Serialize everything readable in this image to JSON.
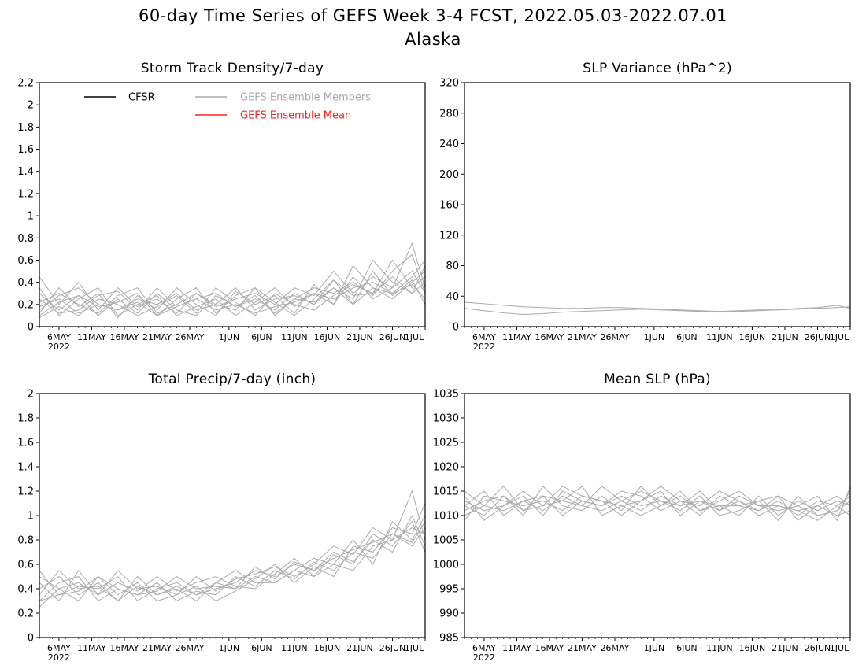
{
  "figure": {
    "title_line1": "60-day Time Series of GEFS Week 3-4 FCST, 2022.05.03-2022.07.01",
    "title_line2": "Alaska"
  },
  "legend": {
    "items": [
      {
        "label": "CFSR",
        "color": "#000000"
      },
      {
        "label": "GEFS Ensemble Members",
        "color": "#aaaaaa"
      },
      {
        "label": "GEFS Ensemble Mean",
        "color": "#ff2020"
      }
    ]
  },
  "colors": {
    "members": "#aaaaaa",
    "axis": "#000000"
  },
  "chart_data": [
    {
      "type": "line",
      "title": "Storm Track Density/7-day",
      "ylim": [
        0,
        2.2
      ],
      "yticks": [
        "0",
        "0.2",
        "0.4",
        "0.6",
        "0.8",
        "1",
        "1.2",
        "1.4",
        "1.6",
        "1.8",
        "2",
        "2.2"
      ],
      "xticks": [
        "6MAY",
        "11MAY",
        "16MAY",
        "21MAY",
        "26MAY",
        "1JUN",
        "6JUN",
        "11JUN",
        "16JUN",
        "21JUN",
        "26JUN",
        "1JUL"
      ],
      "xtick_year": "2022",
      "xlim_days": [
        0,
        59
      ],
      "x": [
        0,
        3,
        6,
        9,
        12,
        15,
        18,
        21,
        24,
        27,
        30,
        33,
        36,
        39,
        42,
        45,
        48,
        51,
        54,
        57,
        59
      ],
      "series": [
        {
          "values": [
            0.18,
            0.25,
            0.12,
            0.2,
            0.15,
            0.22,
            0.1,
            0.18,
            0.25,
            0.15,
            0.2,
            0.12,
            0.18,
            0.22,
            0.3,
            0.25,
            0.35,
            0.4,
            0.3,
            0.38,
            0.25
          ]
        },
        {
          "values": [
            0.3,
            0.15,
            0.28,
            0.1,
            0.25,
            0.12,
            0.3,
            0.15,
            0.1,
            0.28,
            0.18,
            0.25,
            0.15,
            0.3,
            0.2,
            0.42,
            0.28,
            0.3,
            0.45,
            0.3,
            0.4
          ]
        },
        {
          "values": [
            0.12,
            0.35,
            0.18,
            0.3,
            0.08,
            0.28,
            0.15,
            0.35,
            0.2,
            0.1,
            0.32,
            0.2,
            0.28,
            0.12,
            0.38,
            0.2,
            0.45,
            0.25,
            0.35,
            0.5,
            0.3
          ]
        },
        {
          "values": [
            0.45,
            0.2,
            0.4,
            0.15,
            0.35,
            0.18,
            0.25,
            0.12,
            0.3,
            0.2,
            0.15,
            0.35,
            0.1,
            0.25,
            0.22,
            0.35,
            0.2,
            0.5,
            0.28,
            0.42,
            0.2
          ]
        },
        {
          "values": [
            0.08,
            0.18,
            0.1,
            0.25,
            0.2,
            0.1,
            0.18,
            0.28,
            0.12,
            0.35,
            0.22,
            0.1,
            0.3,
            0.2,
            0.15,
            0.28,
            0.38,
            0.3,
            0.6,
            0.35,
            0.45
          ]
        },
        {
          "values": [
            0.22,
            0.3,
            0.2,
            0.12,
            0.28,
            0.35,
            0.12,
            0.2,
            0.3,
            0.18,
            0.25,
            0.3,
            0.2,
            0.35,
            0.28,
            0.5,
            0.3,
            0.45,
            0.35,
            0.75,
            0.35
          ]
        },
        {
          "values": [
            0.35,
            0.1,
            0.25,
            0.35,
            0.1,
            0.2,
            0.28,
            0.1,
            0.18,
            0.25,
            0.1,
            0.22,
            0.35,
            0.18,
            0.3,
            0.2,
            0.55,
            0.35,
            0.25,
            0.4,
            0.5
          ]
        },
        {
          "values": [
            0.15,
            0.28,
            0.35,
            0.2,
            0.15,
            0.25,
            0.2,
            0.3,
            0.15,
            0.2,
            0.35,
            0.15,
            0.25,
            0.28,
            0.2,
            0.35,
            0.25,
            0.6,
            0.4,
            0.3,
            0.55
          ]
        },
        {
          "values": [
            0.25,
            0.12,
            0.15,
            0.28,
            0.32,
            0.15,
            0.35,
            0.18,
            0.25,
            0.3,
            0.18,
            0.28,
            0.12,
            0.25,
            0.35,
            0.3,
            0.4,
            0.28,
            0.5,
            0.65,
            0.3
          ]
        },
        {
          "values": [
            0.1,
            0.22,
            0.28,
            0.18,
            0.22,
            0.3,
            0.1,
            0.25,
            0.35,
            0.12,
            0.28,
            0.35,
            0.22,
            0.1,
            0.25,
            0.42,
            0.2,
            0.35,
            0.3,
            0.45,
            0.6
          ]
        }
      ]
    },
    {
      "type": "line",
      "title": "SLP Variance (hPa^2)",
      "ylim": [
        0,
        320
      ],
      "yticks": [
        "0",
        "40",
        "80",
        "120",
        "160",
        "200",
        "240",
        "280",
        "320"
      ],
      "xticks": [
        "6MAY",
        "11MAY",
        "16MAY",
        "21MAY",
        "26MAY",
        "1JUN",
        "6JUN",
        "11JUN",
        "16JUN",
        "21JUN",
        "26JUN",
        "1JUL"
      ],
      "xtick_year": "2022",
      "xlim_days": [
        0,
        59
      ],
      "x": [
        0,
        3,
        6,
        9,
        12,
        15,
        18,
        21,
        24,
        27,
        30,
        33,
        36,
        39,
        42,
        45,
        48,
        51,
        54,
        57,
        59
      ],
      "series": [
        {
          "values": [
            32,
            30,
            28,
            26,
            25,
            24,
            24,
            25,
            25,
            24,
            23,
            22,
            21,
            20,
            21,
            22,
            22,
            24,
            25,
            28,
            24
          ]
        },
        {
          "values": [
            24,
            21,
            18,
            16,
            17,
            19,
            20,
            21,
            22,
            23,
            22,
            21,
            20,
            19,
            20,
            21,
            22,
            23,
            24,
            25,
            26
          ]
        }
      ]
    },
    {
      "type": "line",
      "title": "Total Precip/7-day (inch)",
      "ylim": [
        0,
        2
      ],
      "yticks": [
        "0",
        "0.2",
        "0.4",
        "0.6",
        "0.8",
        "1",
        "1.2",
        "1.4",
        "1.6",
        "1.8",
        "2"
      ],
      "xticks": [
        "6MAY",
        "11MAY",
        "16MAY",
        "21MAY",
        "26MAY",
        "1JUN",
        "6JUN",
        "11JUN",
        "16JUN",
        "21JUN",
        "26JUN",
        "1JUL"
      ],
      "xtick_year": "2022",
      "xlim_days": [
        0,
        59
      ],
      "x": [
        0,
        3,
        6,
        9,
        12,
        15,
        18,
        21,
        24,
        27,
        30,
        33,
        36,
        39,
        42,
        45,
        48,
        51,
        54,
        57,
        59
      ],
      "series": [
        {
          "values": [
            0.4,
            0.5,
            0.35,
            0.45,
            0.3,
            0.42,
            0.35,
            0.4,
            0.3,
            0.45,
            0.4,
            0.5,
            0.45,
            0.55,
            0.5,
            0.6,
            0.55,
            0.75,
            0.8,
            0.9,
            0.85
          ]
        },
        {
          "values": [
            0.3,
            0.45,
            0.5,
            0.3,
            0.4,
            0.35,
            0.45,
            0.3,
            0.38,
            0.35,
            0.5,
            0.42,
            0.55,
            0.48,
            0.62,
            0.55,
            0.7,
            0.65,
            0.85,
            0.78,
            0.95
          ]
        },
        {
          "values": [
            0.55,
            0.35,
            0.42,
            0.4,
            0.5,
            0.3,
            0.4,
            0.45,
            0.35,
            0.4,
            0.45,
            0.55,
            0.5,
            0.6,
            0.55,
            0.7,
            0.62,
            0.8,
            0.7,
            1.0,
            0.75
          ]
        },
        {
          "values": [
            0.25,
            0.4,
            0.3,
            0.5,
            0.35,
            0.45,
            0.3,
            0.35,
            0.42,
            0.3,
            0.38,
            0.48,
            0.6,
            0.45,
            0.58,
            0.5,
            0.75,
            0.7,
            0.9,
            0.85,
            1.1
          ]
        },
        {
          "values": [
            0.45,
            0.3,
            0.55,
            0.35,
            0.45,
            0.38,
            0.5,
            0.38,
            0.45,
            0.5,
            0.42,
            0.4,
            0.52,
            0.65,
            0.5,
            0.68,
            0.6,
            0.85,
            0.75,
            0.95,
            0.7
          ]
        },
        {
          "values": [
            0.35,
            0.55,
            0.4,
            0.42,
            0.3,
            0.5,
            0.35,
            0.42,
            0.35,
            0.45,
            0.55,
            0.45,
            0.45,
            0.55,
            0.65,
            0.6,
            0.8,
            0.6,
            0.95,
            0.8,
            1.0
          ]
        },
        {
          "values": [
            0.5,
            0.4,
            0.45,
            0.35,
            0.55,
            0.4,
            0.42,
            0.35,
            0.5,
            0.38,
            0.48,
            0.52,
            0.58,
            0.5,
            0.6,
            0.75,
            0.68,
            0.9,
            0.8,
            1.2,
            0.8
          ]
        },
        {
          "values": [
            0.3,
            0.35,
            0.38,
            0.5,
            0.4,
            0.35,
            0.38,
            0.5,
            0.4,
            0.42,
            0.4,
            0.58,
            0.48,
            0.62,
            0.55,
            0.65,
            0.72,
            0.78,
            0.85,
            0.75,
            0.9
          ]
        }
      ]
    },
    {
      "type": "line",
      "title": "Mean SLP (hPa)",
      "ylim": [
        985,
        1035
      ],
      "yticks": [
        "985",
        "990",
        "995",
        "1000",
        "1005",
        "1010",
        "1015",
        "1020",
        "1025",
        "1030",
        "1035"
      ],
      "xticks": [
        "6MAY",
        "11MAY",
        "16MAY",
        "21MAY",
        "26MAY",
        "1JUN",
        "6JUN",
        "11JUN",
        "16JUN",
        "21JUN",
        "26JUN",
        "1JUL"
      ],
      "xtick_year": "2022",
      "xlim_days": [
        0,
        59
      ],
      "x": [
        0,
        3,
        6,
        9,
        12,
        15,
        18,
        21,
        24,
        27,
        30,
        33,
        36,
        39,
        42,
        45,
        48,
        51,
        54,
        57,
        59
      ],
      "series": [
        {
          "values": [
            1012,
            1015,
            1010,
            1013,
            1011,
            1014,
            1012,
            1016,
            1013,
            1011,
            1014,
            1012,
            1015,
            1011,
            1013,
            1010,
            1012,
            1011,
            1009,
            1012,
            1014
          ]
        },
        {
          "values": [
            1010,
            1012,
            1016,
            1011,
            1014,
            1010,
            1013,
            1012,
            1015,
            1014,
            1011,
            1013,
            1010,
            1014,
            1012,
            1011,
            1014,
            1009,
            1012,
            1010,
            1011
          ]
        },
        {
          "values": [
            1014,
            1009,
            1012,
            1015,
            1012,
            1013,
            1016,
            1010,
            1012,
            1013,
            1015,
            1010,
            1013,
            1012,
            1010,
            1014,
            1010,
            1013,
            1011,
            1013,
            1012
          ]
        },
        {
          "values": [
            1011,
            1013,
            1014,
            1010,
            1016,
            1012,
            1011,
            1014,
            1011,
            1016,
            1012,
            1014,
            1011,
            1013,
            1015,
            1012,
            1011,
            1012,
            1014,
            1009,
            1016
          ]
        },
        {
          "values": [
            1013,
            1011,
            1012,
            1014,
            1010,
            1015,
            1013,
            1012,
            1014,
            1012,
            1013,
            1011,
            1014,
            1010,
            1011,
            1013,
            1009,
            1014,
            1010,
            1011,
            1013
          ]
        },
        {
          "values": [
            1009,
            1014,
            1013,
            1012,
            1013,
            1011,
            1014,
            1013,
            1010,
            1013,
            1016,
            1013,
            1012,
            1015,
            1013,
            1011,
            1013,
            1010,
            1013,
            1012,
            1010
          ]
        },
        {
          "values": [
            1015,
            1012,
            1011,
            1013,
            1014,
            1013,
            1012,
            1011,
            1013,
            1015,
            1013,
            1012,
            1013,
            1011,
            1014,
            1012,
            1012,
            1011,
            1012,
            1014,
            1012
          ]
        },
        {
          "values": [
            1012,
            1010,
            1014,
            1011,
            1012,
            1016,
            1014,
            1013,
            1012,
            1010,
            1012,
            1015,
            1011,
            1012,
            1012,
            1013,
            1014,
            1012,
            1010,
            1011,
            1015
          ]
        }
      ]
    }
  ]
}
